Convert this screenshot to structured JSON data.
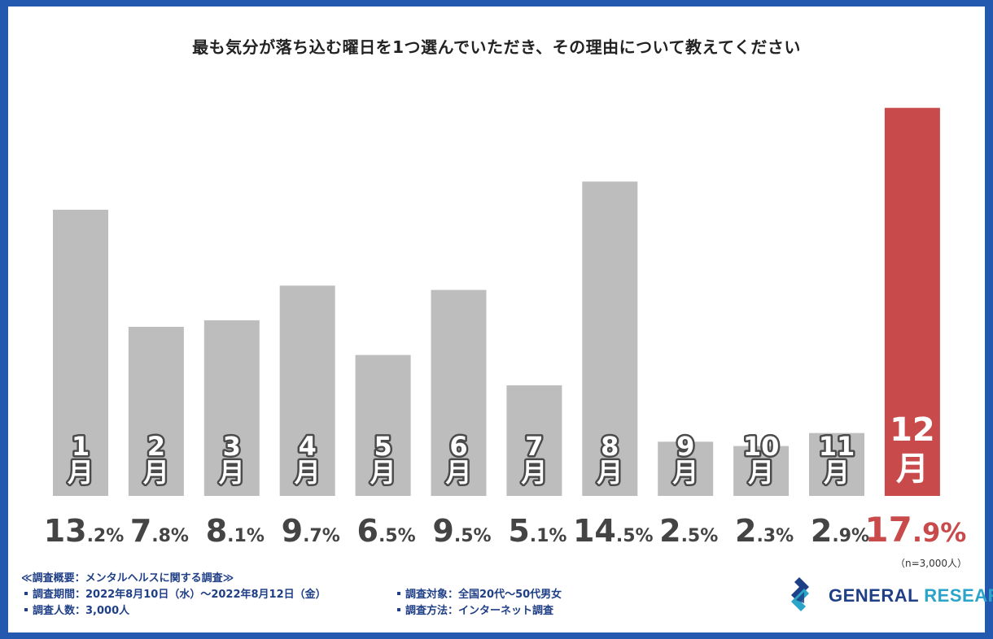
{
  "chart_data": {
    "type": "bar",
    "title": "最も気分が落ち込む曜日を1つ選んでいただき、その理由について教えてください",
    "categories": [
      "1\n月",
      "2\n月",
      "3\n月",
      "4\n月",
      "5\n月",
      "6\n月",
      "7\n月",
      "8\n月",
      "9\n月",
      "10\n月",
      "11\n月",
      "12\n月"
    ],
    "category_numbers": [
      "1",
      "2",
      "3",
      "4",
      "5",
      "6",
      "7",
      "8",
      "9",
      "10",
      "11",
      "12"
    ],
    "month_unit": "月",
    "values": [
      13.2,
      7.8,
      8.1,
      9.7,
      6.5,
      9.5,
      5.1,
      14.5,
      2.5,
      2.3,
      2.9,
      17.9
    ],
    "value_labels_int": [
      "13",
      "7",
      "8",
      "9",
      "6",
      "9",
      "5",
      "14",
      "2",
      "2",
      "2",
      "17"
    ],
    "value_labels_dec": [
      ".2%",
      ".8%",
      ".1%",
      ".7%",
      ".5%",
      ".5%",
      ".1%",
      ".5%",
      ".5%",
      ".3%",
      ".9%",
      ".9%"
    ],
    "highlight_index": 11,
    "ylim": [
      0,
      18
    ],
    "grid": false,
    "legend": "none",
    "colors": {
      "bar": "#bdbdbd",
      "highlight": "#c94a4b",
      "frame": "#2459b0"
    }
  },
  "note": "（n=3,000人）",
  "survey": {
    "header": "≪調査概要：メンタルヘルスに関する調査≫",
    "period": "調査期間：2022年8月10日（水）〜2022年8月12日（金）",
    "count": "調査人数：3,000人",
    "target": "調査対象：全国20代〜50代男女",
    "method": "調査方法：インターネット調査"
  },
  "logo": {
    "word1": "GENERAL",
    "word2": "RESEARCH"
  }
}
